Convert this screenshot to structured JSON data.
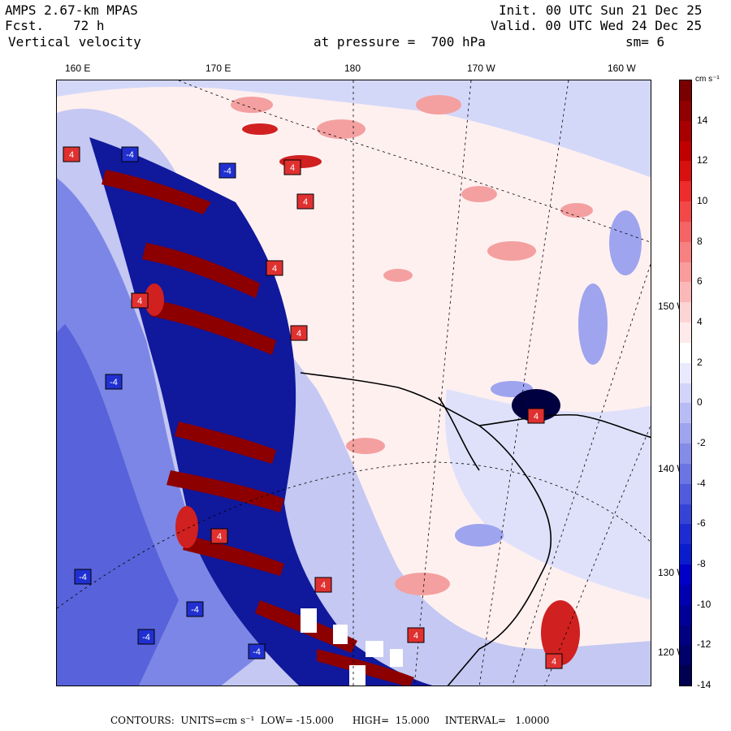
{
  "header": {
    "model": "AMPS 2.67-km MPAS",
    "fcst_label": "Fcst.",
    "fcst_value": "72 h",
    "field": "Vertical velocity",
    "init": "Init. 00 UTC Sun 21 Dec 25",
    "valid": "Valid. 00 UTC Wed 24 Dec 25",
    "pressure": "at pressure =  700 hPa",
    "smooth": "sm= 6"
  },
  "longitude_labels": [
    "160 E",
    "170 E",
    "180",
    "170 W",
    "160 W"
  ],
  "latitude_labels": [
    "150 W",
    "140 W",
    "130 W",
    "120 W"
  ],
  "colorbar": {
    "units": "cm s⁻¹",
    "labels": [
      "14",
      "12",
      "10",
      "8",
      "6",
      "4",
      "2",
      "0",
      "-2",
      "-4",
      "-6",
      "-8",
      "-10",
      "-12",
      "-14"
    ],
    "colors_top_to_bottom": [
      "#7a0000",
      "#900000",
      "#a80000",
      "#c00000",
      "#d81010",
      "#ee2c2c",
      "#f24848",
      "#f56464",
      "#f78080",
      "#f99c9c",
      "#fbb8b8",
      "#fdd4d4",
      "#feeaea",
      "#ffffff",
      "#eaeaff",
      "#d2d4fa",
      "#b8bcf4",
      "#9ea4ee",
      "#848ce8",
      "#6a74e2",
      "#505cdc",
      "#3644d6",
      "#1c2cd0",
      "#0a1ccc",
      "#0000c8",
      "#0000b0",
      "#000098",
      "#000080",
      "#00006a",
      "#000050"
    ]
  },
  "map": {
    "background": "#fff2f2",
    "coast_color": "#000000",
    "box_labels": [
      "4",
      "-4"
    ]
  },
  "footer": {
    "text": "CONTOURS:  UNITS=cm s⁻¹  LOW= -15.000      HIGH=  15.000     INTERVAL=   1.0000"
  }
}
